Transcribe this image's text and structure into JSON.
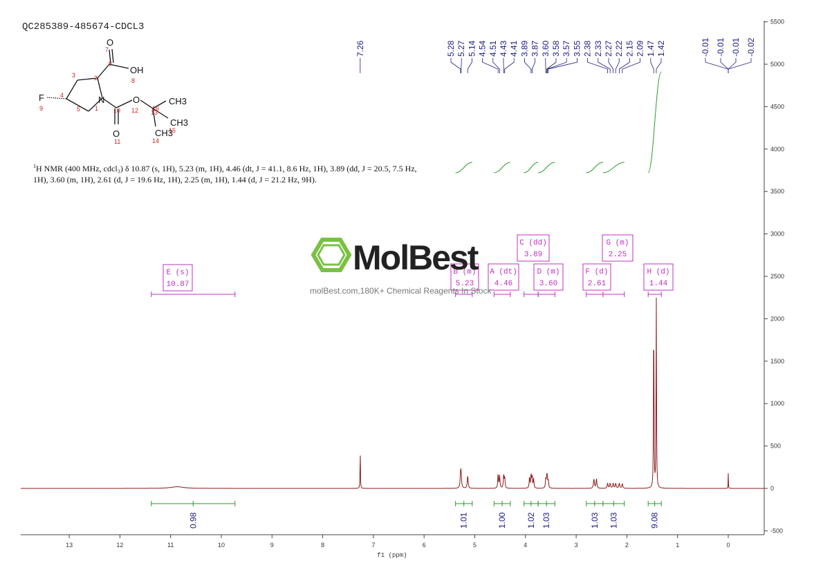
{
  "chart_data": {
    "type": "line",
    "title": "QC285389-485674-CDCL3",
    "xlabel": "f1 (ppm)",
    "xlim": [
      14.0,
      -0.7
    ],
    "ylim": [
      -500,
      5500
    ],
    "x_ticks": [
      "13",
      "12",
      "11",
      "10",
      "9",
      "8",
      "7",
      "6",
      "5",
      "4",
      "3",
      "2",
      "1",
      "0"
    ],
    "y_ticks": [
      "5500",
      "5000",
      "4500",
      "4000",
      "3500",
      "3000",
      "2500",
      "2000",
      "1500",
      "1000",
      "500",
      "0",
      "-500"
    ],
    "peaks": [
      {
        "ppm": 10.87,
        "height": 20,
        "width": 0.15
      },
      {
        "ppm": 7.26,
        "height": 500,
        "width": 0.004
      },
      {
        "ppm": 5.28,
        "height": 150,
        "width": 0.01
      },
      {
        "ppm": 5.27,
        "height": 140,
        "width": 0.01
      },
      {
        "ppm": 5.14,
        "height": 150,
        "width": 0.01
      },
      {
        "ppm": 4.54,
        "height": 170,
        "width": 0.008
      },
      {
        "ppm": 4.51,
        "height": 150,
        "width": 0.008
      },
      {
        "ppm": 4.43,
        "height": 160,
        "width": 0.008
      },
      {
        "ppm": 4.41,
        "height": 130,
        "width": 0.008
      },
      {
        "ppm": 3.92,
        "height": 130,
        "width": 0.008
      },
      {
        "ppm": 3.89,
        "height": 150,
        "width": 0.008
      },
      {
        "ppm": 3.87,
        "height": 140,
        "width": 0.008
      },
      {
        "ppm": 3.84,
        "height": 110,
        "width": 0.008
      },
      {
        "ppm": 3.6,
        "height": 110,
        "width": 0.008
      },
      {
        "ppm": 3.58,
        "height": 120,
        "width": 0.008
      },
      {
        "ppm": 3.57,
        "height": 100,
        "width": 0.008
      },
      {
        "ppm": 3.55,
        "height": 90,
        "width": 0.008
      },
      {
        "ppm": 2.65,
        "height": 110,
        "width": 0.01
      },
      {
        "ppm": 2.6,
        "height": 110,
        "width": 0.01
      },
      {
        "ppm": 2.38,
        "height": 60,
        "width": 0.01
      },
      {
        "ppm": 2.33,
        "height": 60,
        "width": 0.01
      },
      {
        "ppm": 2.27,
        "height": 60,
        "width": 0.01
      },
      {
        "ppm": 2.22,
        "height": 60,
        "width": 0.01
      },
      {
        "ppm": 2.15,
        "height": 60,
        "width": 0.01
      },
      {
        "ppm": 2.09,
        "height": 55,
        "width": 0.01
      },
      {
        "ppm": 1.47,
        "height": 2350,
        "width": 0.005
      },
      {
        "ppm": 1.42,
        "height": 2350,
        "width": 0.005
      },
      {
        "ppm": 0.0,
        "height": 180,
        "width": 0.003
      }
    ],
    "peak_labels": [
      "7.26",
      "5.28",
      "5.27",
      "5.14",
      "4.54",
      "4.51",
      "4.43",
      "4.41",
      "3.89",
      "3.87",
      "3.60",
      "3.58",
      "3.57",
      "3.55",
      "2.38",
      "2.33",
      "2.27",
      "2.22",
      "2.15",
      "2.09",
      "1.47",
      "1.42",
      "-0.01",
      "-0.01",
      "-0.01",
      "-0.02"
    ],
    "multiplets": [
      {
        "label": "E (s)",
        "shift": "10.87",
        "range": [
          11.38,
          9.73
        ]
      },
      {
        "label": "B (m)",
        "shift": "5.23",
        "range": [
          5.38,
          5.05
        ]
      },
      {
        "label": "A (dt)",
        "shift": "4.46",
        "range": [
          4.62,
          4.3
        ]
      },
      {
        "label": "C (dd)",
        "shift": "3.89",
        "range": [
          4.03,
          3.75
        ]
      },
      {
        "label": "D (m)",
        "shift": "3.60",
        "range": [
          3.75,
          3.42
        ]
      },
      {
        "label": "F (d)",
        "shift": "2.61",
        "range": [
          2.8,
          2.47
        ]
      },
      {
        "label": "G (m)",
        "shift": "2.25",
        "range": [
          2.47,
          2.05
        ]
      },
      {
        "label": "H (d)",
        "shift": "1.44",
        "range": [
          1.58,
          1.32
        ]
      }
    ],
    "integrals": [
      {
        "value": "0.98",
        "range": [
          11.38,
          9.73
        ]
      },
      {
        "value": "1.01",
        "range": [
          5.38,
          5.05
        ]
      },
      {
        "value": "1.00",
        "range": [
          4.62,
          4.3
        ]
      },
      {
        "value": "1.02",
        "range": [
          4.03,
          3.75
        ]
      },
      {
        "value": "1.03",
        "range": [
          3.75,
          3.42
        ]
      },
      {
        "value": "1.03",
        "range": [
          2.8,
          2.47
        ]
      },
      {
        "value": "1.03",
        "range": [
          2.47,
          2.05
        ]
      },
      {
        "value": "9.08",
        "range": [
          1.58,
          1.32
        ]
      }
    ]
  },
  "structure": {
    "atoms": [
      "O",
      "OH",
      "F",
      "N",
      "O",
      "O",
      "CH3",
      "CH3",
      "CH3"
    ],
    "numbers": [
      "1",
      "2",
      "3",
      "4",
      "5",
      "6",
      "7",
      "8",
      "9",
      "10",
      "11",
      "12",
      "13",
      "14",
      "15",
      "16"
    ]
  },
  "description": {
    "nucleus_sup": "1",
    "text": "H NMR (400 MHz, cdcl₃) δ 10.87 (s, 1H), 5.23 (m, 1H), 4.46 (dt, J = 41.1, 8.6 Hz, 1H), 3.89 (dd, J = 20.5, 7.5 Hz, 1H), 3.60 (m, 1H), 2.61 (d, J = 19.6 Hz, 1H), 2.25 (m, 1H), 1.44 (d, J = 21.2 Hz, 9H)."
  },
  "watermark": {
    "brand": "MolBest",
    "text": "molBest.com,180K+ Chemical Reagents In Stock"
  },
  "colors": {
    "spectrum": "#8b1a1a",
    "integral": "#2a9a2a",
    "multiplet": "#c030c0",
    "peak_label": "#1a1a80",
    "logo": "#7ac142",
    "atom_number": "#cc2222"
  }
}
